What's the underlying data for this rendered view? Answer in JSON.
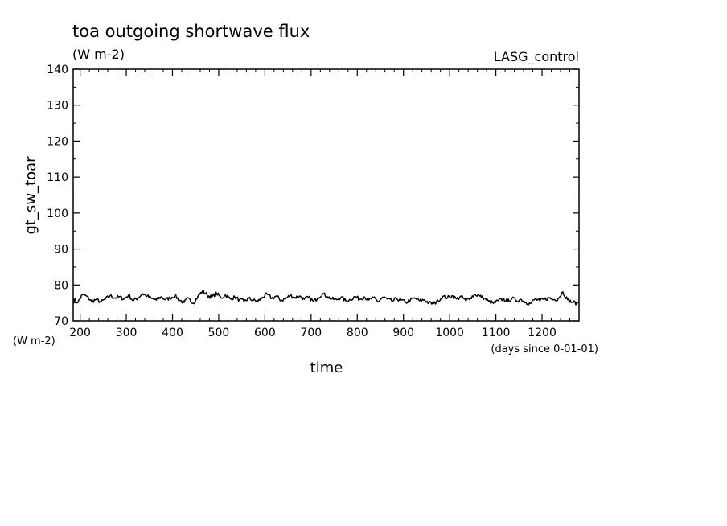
{
  "chart_data": {
    "type": "line",
    "title": "toa outgoing shortwave flux",
    "subtitle": "(W m-2)",
    "run_label": "LASG_control",
    "xlabel": "time",
    "x_units": "(days since 0-01-01)",
    "ylabel": "gt_sw_toar",
    "y_units": "(W m-2)",
    "xlim": [
      185,
      1280
    ],
    "ylim": [
      70,
      140
    ],
    "x_ticks": [
      200,
      300,
      400,
      500,
      600,
      700,
      800,
      900,
      1000,
      1100,
      1200
    ],
    "y_ticks": [
      70,
      80,
      90,
      100,
      110,
      120,
      130,
      140
    ],
    "grid": false,
    "line_color": "#000000",
    "series": [
      {
        "x": [
          185,
          195,
          205,
          215,
          225,
          235,
          245,
          255,
          265,
          275,
          285,
          295,
          305,
          315,
          325,
          335,
          345,
          355,
          365,
          375,
          385,
          395,
          405,
          415,
          425,
          435,
          445,
          455,
          465,
          475,
          485,
          495,
          505,
          515,
          525,
          535,
          545,
          555,
          565,
          575,
          585,
          595,
          605,
          615,
          625,
          635,
          645,
          655,
          665,
          675,
          685,
          695,
          705,
          715,
          725,
          735,
          745,
          755,
          765,
          775,
          785,
          795,
          805,
          815,
          825,
          835,
          845,
          855,
          865,
          875,
          885,
          895,
          905,
          915,
          925,
          935,
          945,
          955,
          965,
          975,
          985,
          995,
          1005,
          1015,
          1025,
          1035,
          1045,
          1055,
          1065,
          1075,
          1085,
          1095,
          1105,
          1115,
          1125,
          1135,
          1145,
          1155,
          1165,
          1175,
          1185,
          1195,
          1205,
          1215,
          1225,
          1235,
          1245,
          1255,
          1265,
          1275
        ],
        "values": [
          76.2,
          75.1,
          77.3,
          76.8,
          75.4,
          76.0,
          75.2,
          76.1,
          77.0,
          76.4,
          76.7,
          76.1,
          77.2,
          75.6,
          76.4,
          77.6,
          76.9,
          76.2,
          75.8,
          76.7,
          75.9,
          76.4,
          77.1,
          75.8,
          75.1,
          76.3,
          74.9,
          76.8,
          78.3,
          77.2,
          76.6,
          77.8,
          76.4,
          77.2,
          76.1,
          76.6,
          75.9,
          75.4,
          76.3,
          75.7,
          75.5,
          76.6,
          77.4,
          76.3,
          76.9,
          75.7,
          76.2,
          77.1,
          76.5,
          76.9,
          76.0,
          76.6,
          75.4,
          76.5,
          77.6,
          76.8,
          76.1,
          75.9,
          76.6,
          75.6,
          75.9,
          76.8,
          76.0,
          76.7,
          75.8,
          76.4,
          75.3,
          76.6,
          76.1,
          75.4,
          76.2,
          75.8,
          75.1,
          75.8,
          76.3,
          75.6,
          75.9,
          75.0,
          74.8,
          75.6,
          76.8,
          76.4,
          77.0,
          76.1,
          76.8,
          75.6,
          76.5,
          77.4,
          76.9,
          76.3,
          75.4,
          74.9,
          75.6,
          76.1,
          75.4,
          76.3,
          75.6,
          76.0,
          75.2,
          74.8,
          76.1,
          75.6,
          76.0,
          76.4,
          75.9,
          76.2,
          78.1,
          75.9,
          75.2,
          75.0
        ]
      }
    ]
  }
}
